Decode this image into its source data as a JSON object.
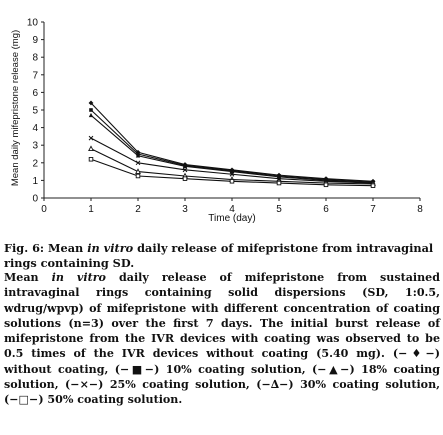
{
  "chart_data": {
    "type": "line",
    "xlabel": "Time (day)",
    "ylabel": "Mean daily mifepristone release (mg)",
    "xlim": [
      0,
      8
    ],
    "ylim": [
      0,
      10
    ],
    "x_ticks": [
      "0",
      "1",
      "2",
      "3",
      "4",
      "5",
      "6",
      "7",
      "8"
    ],
    "y_ticks": [
      "0",
      "1",
      "2",
      "3",
      "4",
      "5",
      "6",
      "7",
      "8",
      "9",
      "10"
    ],
    "grid": false,
    "legend": "none",
    "x": [
      1,
      2,
      3,
      4,
      5,
      6,
      7
    ],
    "series": [
      {
        "values": [
          5.4,
          2.6,
          1.9,
          1.6,
          1.3,
          1.1,
          0.95
        ],
        "color": "#111111"
      },
      {
        "values": [
          5.0,
          2.5,
          1.85,
          1.55,
          1.25,
          1.05,
          0.9
        ],
        "color": "#111111"
      },
      {
        "values": [
          4.7,
          2.4,
          1.8,
          1.5,
          1.2,
          1.0,
          0.85
        ],
        "color": "#111111"
      },
      {
        "values": [
          3.4,
          2.0,
          1.6,
          1.35,
          1.1,
          0.95,
          0.85
        ],
        "color": "#111111"
      },
      {
        "values": [
          2.8,
          1.5,
          1.25,
          1.05,
          0.95,
          0.85,
          0.8
        ],
        "color": "#111111"
      },
      {
        "values": [
          2.2,
          1.25,
          1.1,
          0.95,
          0.85,
          0.75,
          0.7
        ],
        "color": "#111111"
      }
    ]
  },
  "caption": {
    "fig_label": "Fig. 6:",
    "title_part1": " Mean ",
    "title_italic": "in vitro",
    "title_part2": " daily release of mifepristone from intravaginal rings containing SD.",
    "body_part1": "Mean ",
    "body_italic": "in vitro",
    "body_part2": " daily release of mifepristone from sustained intravaginal rings containing solid dispersions (SD, 1:0.5, wdrug/wpvp) of mifepristone with different concentration of coating solutions (n=3) over the first 7 days. The initial burst release of mifepristone from the IVR devices with coating was observed to be 0.5 times of the IVR devices without coating (5.40 mg). (−♦−) without coating, (−■−) 10% coating solution, (−▲−) 18% coating solution, (−×−) 25% coating solution, (−∆−) 30% coating solution, (−□−) 50% coating solution."
  }
}
